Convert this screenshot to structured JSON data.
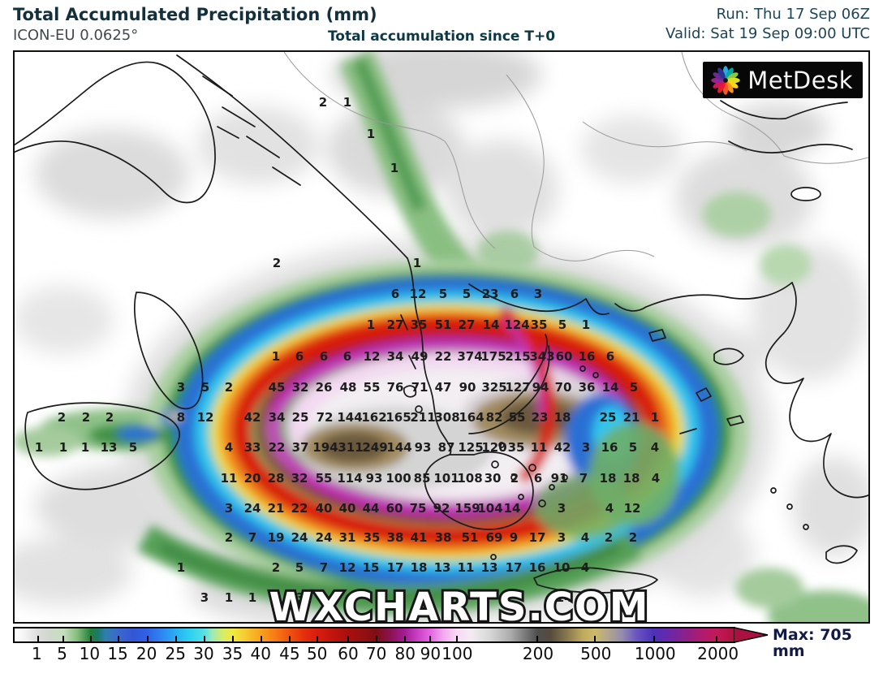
{
  "header": {
    "title": "Total Accumulated Precipitation (mm)",
    "model": "ICON-EU 0.0625°",
    "subtitle": "Total accumulation since T+0",
    "run": "Run: Thu 17 Sep 06Z",
    "valid": "Valid: Sat 19 Sep 09:00 UTC"
  },
  "branding": {
    "logo_text": "MetDesk",
    "watermark": "WXCHARTS.COM"
  },
  "colors": {
    "title_text": "#14303c",
    "header_blue": "#1d4456",
    "max_text": "#121b45",
    "value_text": "#1d1d1d"
  },
  "colorbar": {
    "max_label": "Max: 705 mm",
    "unit": "mm",
    "arrow_color": "#ab1140",
    "ticks": [
      {
        "label": "1",
        "pct": 3.3
      },
      {
        "label": "5",
        "pct": 6.8
      },
      {
        "label": "10",
        "pct": 10.6
      },
      {
        "label": "15",
        "pct": 14.5
      },
      {
        "label": "20",
        "pct": 18.5
      },
      {
        "label": "25",
        "pct": 22.5
      },
      {
        "label": "30",
        "pct": 26.4
      },
      {
        "label": "35",
        "pct": 30.4
      },
      {
        "label": "40",
        "pct": 34.3
      },
      {
        "label": "45",
        "pct": 38.3
      },
      {
        "label": "50",
        "pct": 42.1
      },
      {
        "label": "60",
        "pct": 46.4
      },
      {
        "label": "70",
        "pct": 50.3
      },
      {
        "label": "80",
        "pct": 54.3
      },
      {
        "label": "90",
        "pct": 57.8
      },
      {
        "label": "100",
        "pct": 61.5
      },
      {
        "label": "200",
        "pct": 72.7
      },
      {
        "label": "500",
        "pct": 80.7
      },
      {
        "label": "1000",
        "pct": 88.9
      },
      {
        "label": "2000",
        "pct": 97.6
      }
    ],
    "gradient_stops": [
      {
        "pct": 0,
        "color": "#ffffff"
      },
      {
        "pct": 1.5,
        "color": "#f2f2f2"
      },
      {
        "pct": 3.3,
        "color": "#dcdcdc"
      },
      {
        "pct": 5,
        "color": "#cfd8cc"
      },
      {
        "pct": 6.8,
        "color": "#c6dfbd"
      },
      {
        "pct": 8.7,
        "color": "#85bd7e"
      },
      {
        "pct": 10.6,
        "color": "#20803a"
      },
      {
        "pct": 11.6,
        "color": "#1b7a68"
      },
      {
        "pct": 12.6,
        "color": "#2f7fae"
      },
      {
        "pct": 14.5,
        "color": "#3a68cc"
      },
      {
        "pct": 16.5,
        "color": "#3356d6"
      },
      {
        "pct": 18.5,
        "color": "#2f62e8"
      },
      {
        "pct": 20.5,
        "color": "#2f87f2"
      },
      {
        "pct": 22.5,
        "color": "#27b2f0"
      },
      {
        "pct": 24.4,
        "color": "#2fd0f2"
      },
      {
        "pct": 26.4,
        "color": "#55e0e4"
      },
      {
        "pct": 27.5,
        "color": "#9fe9b5"
      },
      {
        "pct": 29,
        "color": "#d8ec66"
      },
      {
        "pct": 30.4,
        "color": "#f2e93e"
      },
      {
        "pct": 32.4,
        "color": "#f6c42e"
      },
      {
        "pct": 34.3,
        "color": "#f8a01c"
      },
      {
        "pct": 36.3,
        "color": "#f67916"
      },
      {
        "pct": 38.3,
        "color": "#f0520f"
      },
      {
        "pct": 40.2,
        "color": "#e5300e"
      },
      {
        "pct": 42.1,
        "color": "#d91d0e"
      },
      {
        "pct": 44.2,
        "color": "#c2140e"
      },
      {
        "pct": 46.4,
        "color": "#a90f0e"
      },
      {
        "pct": 48.4,
        "color": "#941011"
      },
      {
        "pct": 50.3,
        "color": "#7f0e13"
      },
      {
        "pct": 52.3,
        "color": "#8c1255"
      },
      {
        "pct": 54.3,
        "color": "#a41d96"
      },
      {
        "pct": 56,
        "color": "#c93fc4"
      },
      {
        "pct": 57.8,
        "color": "#e565e2"
      },
      {
        "pct": 59.6,
        "color": "#f2a9ee"
      },
      {
        "pct": 61.5,
        "color": "#f8d9f6"
      },
      {
        "pct": 63.5,
        "color": "#f2ecf2"
      },
      {
        "pct": 66,
        "color": "#d8d8d8"
      },
      {
        "pct": 69,
        "color": "#ababab"
      },
      {
        "pct": 72.7,
        "color": "#4f4f4f"
      },
      {
        "pct": 74.5,
        "color": "#564b3c"
      },
      {
        "pct": 77,
        "color": "#8c7c50"
      },
      {
        "pct": 79,
        "color": "#bfa95e"
      },
      {
        "pct": 80.7,
        "color": "#cdb96a"
      },
      {
        "pct": 82.5,
        "color": "#b3a58c"
      },
      {
        "pct": 84.5,
        "color": "#938cae"
      },
      {
        "pct": 86.5,
        "color": "#6a55c0"
      },
      {
        "pct": 88.9,
        "color": "#4c30ba"
      },
      {
        "pct": 91,
        "color": "#6b28a8"
      },
      {
        "pct": 93.5,
        "color": "#8f2088"
      },
      {
        "pct": 95.5,
        "color": "#ae1c6e"
      },
      {
        "pct": 97.6,
        "color": "#c4185c"
      },
      {
        "pct": 100,
        "color": "#b01340"
      }
    ]
  },
  "map_values": [
    [
      380,
      62,
      "2"
    ],
    [
      410,
      62,
      "1"
    ],
    [
      439,
      101,
      "1"
    ],
    [
      468,
      143,
      "1"
    ],
    [
      323,
      260,
      "2"
    ],
    [
      496,
      260,
      "1"
    ],
    [
      469,
      298,
      "6"
    ],
    [
      497,
      298,
      "12"
    ],
    [
      528,
      298,
      "5"
    ],
    [
      557,
      298,
      "5"
    ],
    [
      586,
      298,
      "23"
    ],
    [
      616,
      298,
      "6"
    ],
    [
      645,
      298,
      "3"
    ],
    [
      439,
      336,
      "1"
    ],
    [
      469,
      336,
      "27"
    ],
    [
      498,
      336,
      "35"
    ],
    [
      528,
      336,
      "51"
    ],
    [
      557,
      336,
      "27"
    ],
    [
      587,
      336,
      "14"
    ],
    [
      619,
      336,
      "124"
    ],
    [
      646,
      336,
      "35"
    ],
    [
      675,
      336,
      "5"
    ],
    [
      704,
      336,
      "1"
    ],
    [
      322,
      375,
      "1"
    ],
    [
      351,
      375,
      "6"
    ],
    [
      381,
      375,
      "6"
    ],
    [
      410,
      375,
      "6"
    ],
    [
      440,
      375,
      "12"
    ],
    [
      469,
      375,
      "34"
    ],
    [
      499,
      375,
      "49"
    ],
    [
      528,
      375,
      "22"
    ],
    [
      561,
      375,
      "374"
    ],
    [
      590,
      375,
      "175"
    ],
    [
      620,
      375,
      "215"
    ],
    [
      650,
      375,
      "343"
    ],
    [
      677,
      375,
      "60"
    ],
    [
      705,
      375,
      "16"
    ],
    [
      734,
      375,
      "6"
    ],
    [
      205,
      413,
      "3"
    ],
    [
      235,
      413,
      "5"
    ],
    [
      264,
      413,
      "2"
    ],
    [
      323,
      413,
      "45"
    ],
    [
      352,
      413,
      "32"
    ],
    [
      381,
      413,
      "26"
    ],
    [
      411,
      413,
      "48"
    ],
    [
      440,
      413,
      "55"
    ],
    [
      469,
      413,
      "76"
    ],
    [
      499,
      413,
      "71"
    ],
    [
      528,
      413,
      "47"
    ],
    [
      558,
      413,
      "90"
    ],
    [
      591,
      413,
      "325"
    ],
    [
      620,
      413,
      "127"
    ],
    [
      648,
      413,
      "94"
    ],
    [
      676,
      413,
      "70"
    ],
    [
      705,
      413,
      "36"
    ],
    [
      734,
      413,
      "14"
    ],
    [
      763,
      413,
      "5"
    ],
    [
      58,
      450,
      "2"
    ],
    [
      88,
      450,
      "2"
    ],
    [
      117,
      450,
      "2"
    ],
    [
      205,
      450,
      "8"
    ],
    [
      235,
      450,
      "12"
    ],
    [
      293,
      450,
      "42"
    ],
    [
      323,
      450,
      "34"
    ],
    [
      352,
      450,
      "25"
    ],
    [
      382,
      450,
      "72"
    ],
    [
      413,
      450,
      "144"
    ],
    [
      443,
      450,
      "162"
    ],
    [
      473,
      450,
      "165"
    ],
    [
      503,
      450,
      "211"
    ],
    [
      533,
      450,
      "308"
    ],
    [
      563,
      450,
      "164"
    ],
    [
      591,
      450,
      "82"
    ],
    [
      619,
      450,
      "55"
    ],
    [
      647,
      450,
      "23"
    ],
    [
      675,
      450,
      "18"
    ],
    [
      731,
      450,
      "25"
    ],
    [
      760,
      450,
      "21"
    ],
    [
      789,
      450,
      "1"
    ],
    [
      30,
      487,
      "1"
    ],
    [
      60,
      487,
      "1"
    ],
    [
      87,
      487,
      "1"
    ],
    [
      116,
      487,
      "13"
    ],
    [
      146,
      487,
      "5"
    ],
    [
      264,
      487,
      "4"
    ],
    [
      293,
      487,
      "33"
    ],
    [
      323,
      487,
      "22"
    ],
    [
      352,
      487,
      "37"
    ],
    [
      383,
      487,
      "194"
    ],
    [
      414,
      487,
      "311"
    ],
    [
      444,
      487,
      "249"
    ],
    [
      474,
      487,
      "144"
    ],
    [
      503,
      487,
      "93"
    ],
    [
      532,
      487,
      "87"
    ],
    [
      562,
      487,
      "125"
    ],
    [
      591,
      487,
      "120"
    ],
    [
      618,
      487,
      "35"
    ],
    [
      646,
      487,
      "11"
    ],
    [
      675,
      487,
      "42"
    ],
    [
      704,
      487,
      "3"
    ],
    [
      733,
      487,
      "16"
    ],
    [
      762,
      487,
      "5"
    ],
    [
      789,
      487,
      "4"
    ],
    [
      264,
      525,
      "11"
    ],
    [
      293,
      525,
      "20"
    ],
    [
      322,
      525,
      "28"
    ],
    [
      351,
      525,
      "32"
    ],
    [
      381,
      525,
      "55"
    ],
    [
      413,
      525,
      "114"
    ],
    [
      443,
      525,
      "93"
    ],
    [
      473,
      525,
      "100"
    ],
    [
      502,
      525,
      "85"
    ],
    [
      532,
      525,
      "101"
    ],
    [
      561,
      525,
      "108"
    ],
    [
      589,
      525,
      "30"
    ],
    [
      616,
      525,
      "2"
    ],
    [
      645,
      525,
      "6"
    ],
    [
      671,
      525,
      "91"
    ],
    [
      701,
      525,
      "7"
    ],
    [
      731,
      525,
      "18"
    ],
    [
      760,
      525,
      "18"
    ],
    [
      790,
      525,
      "4"
    ],
    [
      264,
      562,
      "3"
    ],
    [
      293,
      562,
      "24"
    ],
    [
      322,
      562,
      "21"
    ],
    [
      351,
      562,
      "22"
    ],
    [
      381,
      562,
      "40"
    ],
    [
      410,
      562,
      "40"
    ],
    [
      439,
      562,
      "44"
    ],
    [
      468,
      562,
      "60"
    ],
    [
      497,
      562,
      "75"
    ],
    [
      526,
      562,
      "92"
    ],
    [
      558,
      562,
      "159"
    ],
    [
      586,
      562,
      "104"
    ],
    [
      613,
      562,
      "14"
    ],
    [
      674,
      562,
      "3"
    ],
    [
      733,
      562,
      "4"
    ],
    [
      761,
      562,
      "12"
    ],
    [
      264,
      598,
      "2"
    ],
    [
      293,
      598,
      "7"
    ],
    [
      322,
      598,
      "19"
    ],
    [
      351,
      598,
      "24"
    ],
    [
      381,
      598,
      "24"
    ],
    [
      410,
      598,
      "31"
    ],
    [
      440,
      598,
      "35"
    ],
    [
      469,
      598,
      "38"
    ],
    [
      498,
      598,
      "41"
    ],
    [
      528,
      598,
      "38"
    ],
    [
      561,
      598,
      "51"
    ],
    [
      591,
      598,
      "69"
    ],
    [
      615,
      598,
      "9"
    ],
    [
      644,
      598,
      "17"
    ],
    [
      674,
      598,
      "3"
    ],
    [
      703,
      598,
      "4"
    ],
    [
      732,
      598,
      "2"
    ],
    [
      762,
      598,
      "2"
    ],
    [
      205,
      635,
      "1"
    ],
    [
      322,
      635,
      "2"
    ],
    [
      351,
      635,
      "5"
    ],
    [
      381,
      635,
      "7"
    ],
    [
      410,
      635,
      "12"
    ],
    [
      439,
      635,
      "15"
    ],
    [
      469,
      635,
      "17"
    ],
    [
      498,
      635,
      "18"
    ],
    [
      527,
      635,
      "13"
    ],
    [
      556,
      635,
      "11"
    ],
    [
      585,
      635,
      "13"
    ],
    [
      615,
      635,
      "17"
    ],
    [
      644,
      635,
      "16"
    ],
    [
      674,
      635,
      "10"
    ],
    [
      703,
      635,
      "4"
    ],
    [
      234,
      672,
      "3"
    ],
    [
      264,
      672,
      "1"
    ],
    [
      293,
      672,
      "1"
    ],
    [
      322,
      672,
      "1"
    ],
    [
      352,
      672,
      "3"
    ],
    [
      677,
      672,
      "14"
    ]
  ]
}
